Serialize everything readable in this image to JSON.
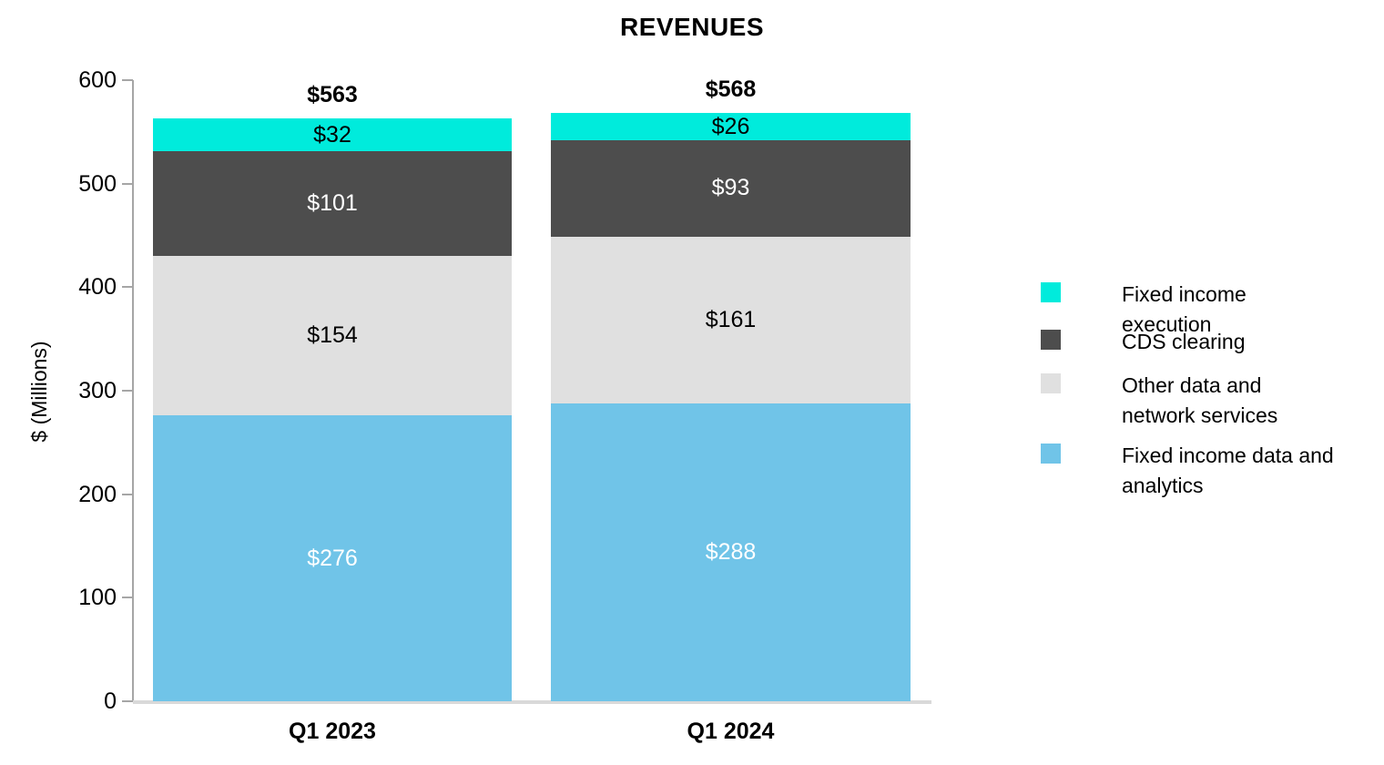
{
  "chart_data": {
    "type": "bar",
    "stacked": true,
    "title": "REVENUES",
    "xlabel": "",
    "ylabel": "$ (Millions)",
    "ylim": [
      0,
      600
    ],
    "yticks": [
      0,
      100,
      200,
      300,
      400,
      500,
      600
    ],
    "grid": false,
    "legend_position": "right",
    "categories": [
      "Q1 2023",
      "Q1 2024"
    ],
    "totals": [
      "$563",
      "$568"
    ],
    "series": [
      {
        "name": "Fixed income data and analytics",
        "color": "#70c4e8",
        "label_color": "#ffffff",
        "values": [
          276,
          288
        ],
        "labels": [
          "$276",
          "$288"
        ]
      },
      {
        "name": "Other data and network services",
        "color": "#e0e0e0",
        "label_color": "#000000",
        "values": [
          154,
          161
        ],
        "labels": [
          "$154",
          "$161"
        ]
      },
      {
        "name": "CDS clearing",
        "color": "#4d4d4d",
        "label_color": "#ffffff",
        "values": [
          101,
          93
        ],
        "labels": [
          "$101",
          "$93"
        ]
      },
      {
        "name": "Fixed income execution",
        "color": "#00ebdc",
        "label_color": "#000000",
        "values": [
          32,
          26
        ],
        "labels": [
          "$32",
          "$26"
        ]
      }
    ],
    "legend_order_top_to_bottom": [
      "Fixed income execution",
      "CDS clearing",
      "Other data and network services",
      "Fixed income data and analytics"
    ]
  },
  "axis_colors": {
    "axis_line": "#a6a6a6",
    "baseline": "#d9d9d9"
  }
}
